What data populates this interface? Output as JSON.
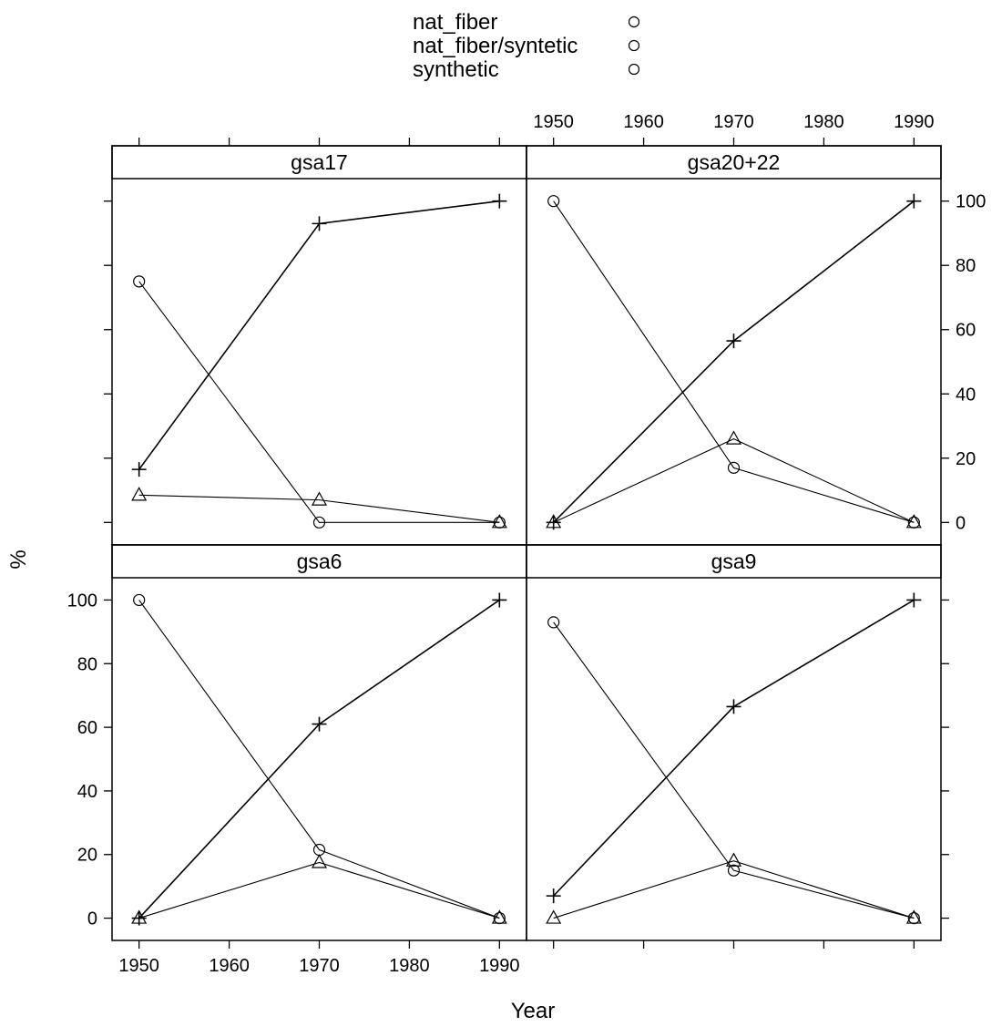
{
  "chart_data": {
    "type": "line",
    "layout": "trellis 2x2",
    "xlabel": "Year",
    "ylabel": "%",
    "xlim": [
      1947,
      1993
    ],
    "ylim": [
      -7,
      107
    ],
    "x_ticks": [
      1950,
      1960,
      1970,
      1980,
      1990
    ],
    "y_ticks": [
      0,
      20,
      40,
      60,
      80,
      100
    ],
    "x": [
      1950,
      1970,
      1990
    ],
    "legend": {
      "position": "top",
      "entries": [
        {
          "label": "nat_fiber",
          "symbol": "circle"
        },
        {
          "label": "nat_fiber/syntetic",
          "symbol": "circle"
        },
        {
          "label": "synthetic",
          "symbol": "circle"
        }
      ]
    },
    "series_styles": [
      {
        "key": "nat_fiber",
        "marker": "circle"
      },
      {
        "key": "nat_fiber/syntetic",
        "marker": "triangle"
      },
      {
        "key": "synthetic",
        "marker": "plus"
      }
    ],
    "panels": [
      {
        "title": "gsa17",
        "series": [
          {
            "key": "nat_fiber",
            "values": [
              75,
              0,
              0
            ]
          },
          {
            "key": "nat_fiber/syntetic",
            "values": [
              8.5,
              7,
              0
            ]
          },
          {
            "key": "synthetic",
            "values": [
              16.5,
              93,
              100
            ]
          }
        ]
      },
      {
        "title": "gsa20+22",
        "series": [
          {
            "key": "nat_fiber",
            "values": [
              100,
              17,
              0
            ]
          },
          {
            "key": "nat_fiber/syntetic",
            "values": [
              0,
              26,
              0
            ]
          },
          {
            "key": "synthetic",
            "values": [
              0,
              56.5,
              100
            ]
          }
        ]
      },
      {
        "title": "gsa6",
        "series": [
          {
            "key": "nat_fiber",
            "values": [
              100,
              21.5,
              0
            ]
          },
          {
            "key": "nat_fiber/syntetic",
            "values": [
              0,
              17.5,
              0
            ]
          },
          {
            "key": "synthetic",
            "values": [
              0,
              61,
              100
            ]
          }
        ]
      },
      {
        "title": "gsa9",
        "series": [
          {
            "key": "nat_fiber",
            "values": [
              93,
              15,
              0
            ]
          },
          {
            "key": "nat_fiber/syntetic",
            "values": [
              0,
              18,
              0
            ]
          },
          {
            "key": "synthetic",
            "values": [
              7,
              66.5,
              100
            ]
          }
        ]
      }
    ]
  }
}
